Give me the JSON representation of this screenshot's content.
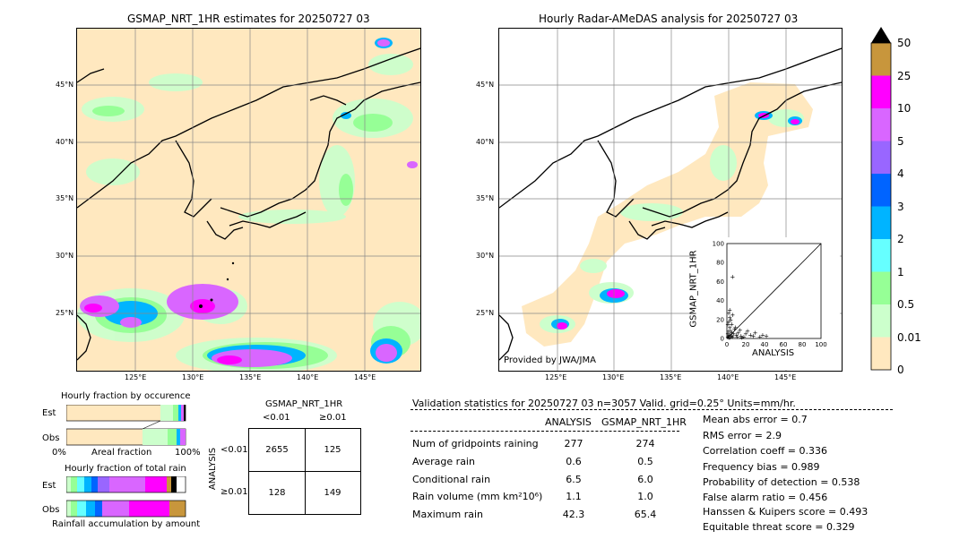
{
  "left_map": {
    "title": "GSMAP_NRT_1HR estimates for 20250727 03",
    "lat_labels": [
      "45°N",
      "40°N",
      "35°N",
      "30°N",
      "25°N"
    ],
    "lon_labels": [
      "125°E",
      "130°E",
      "135°E",
      "140°E",
      "145°E"
    ]
  },
  "right_map": {
    "title": "Hourly Radar-AMeDAS analysis for 20250727 03",
    "lat_labels": [
      "45°N",
      "40°N",
      "35°N",
      "30°N",
      "25°N"
    ],
    "lon_labels": [
      "125°E",
      "130°E",
      "135°E",
      "140°E",
      "145°E"
    ],
    "credit": "Provided by JWA/JMA"
  },
  "colorbar": {
    "labels": [
      "50",
      "25",
      "10",
      "5",
      "4",
      "3",
      "2",
      "1",
      "0.5",
      "0.01",
      "0"
    ],
    "colors": [
      "#c8963c",
      "#ff00ff",
      "#d966ff",
      "#9966ff",
      "#0064ff",
      "#00b4ff",
      "#66ffff",
      "#96ff96",
      "#ccffcc",
      "#ffe8bf"
    ]
  },
  "scatter": {
    "xlabel": "ANALYSIS",
    "ylabel": "GSMAP_NRT_1HR",
    "ticks": [
      "0",
      "20",
      "40",
      "60",
      "80",
      "100"
    ]
  },
  "fraction_occurrence": {
    "title": "Hourly fraction by occurence",
    "rows": [
      "Est",
      "Obs"
    ],
    "axis_left": "0%",
    "axis_mid": "Areal fraction",
    "axis_right": "100%"
  },
  "fraction_total": {
    "title": "Hourly fraction of total rain",
    "rows": [
      "Est",
      "Obs"
    ],
    "caption": "Rainfall accumulation by amount"
  },
  "contingency": {
    "col_title": "GSMAP_NRT_1HR",
    "col_headers": [
      "<0.01",
      "≥0.01"
    ],
    "row_title": "ANALYSIS",
    "row_headers": [
      "<0.01",
      "≥0.01"
    ],
    "cells": [
      "2655",
      "125",
      "128",
      "149"
    ]
  },
  "validation": {
    "header": "Validation statistics for 20250727 03  n=3057 Valid. grid=0.25° Units=mm/hr.",
    "col_headers": [
      "ANALYSIS",
      "GSMAP_NRT_1HR"
    ],
    "rows": [
      {
        "label": "Num of gridpoints raining",
        "analysis": "277",
        "gsmap": "274"
      },
      {
        "label": "Average rain",
        "analysis": "0.6",
        "gsmap": "0.5"
      },
      {
        "label": "Conditional rain",
        "analysis": "6.5",
        "gsmap": "6.0"
      },
      {
        "label": "Rain volume (mm km²10⁶)",
        "analysis": "1.1",
        "gsmap": "1.0"
      },
      {
        "label": "Maximum rain",
        "analysis": "42.3",
        "gsmap": "65.4"
      }
    ],
    "scores": [
      "Mean abs error =    0.7",
      "RMS error =    2.9",
      "Correlation coeff =  0.336",
      "Frequency bias =  0.989",
      "Probability of detection =  0.538",
      "False alarm ratio =  0.456",
      "Hanssen & Kuipers score =  0.493",
      "Equitable threat score =  0.329"
    ]
  },
  "chart_data": {
    "type": "scatter",
    "xlabel": "ANALYSIS",
    "ylabel": "GSMAP_NRT_1HR",
    "xlim": [
      0,
      100
    ],
    "ylim": [
      0,
      100
    ],
    "points": [
      [
        1,
        2
      ],
      [
        2,
        1
      ],
      [
        3,
        4
      ],
      [
        4,
        3
      ],
      [
        5,
        6
      ],
      [
        6,
        2
      ],
      [
        2,
        8
      ],
      [
        3,
        12
      ],
      [
        5,
        15
      ],
      [
        7,
        5
      ],
      [
        8,
        10
      ],
      [
        4,
        20
      ],
      [
        6,
        25
      ],
      [
        2,
        27
      ],
      [
        3,
        30
      ],
      [
        10,
        4
      ],
      [
        12,
        6
      ],
      [
        15,
        3
      ],
      [
        18,
        2
      ],
      [
        20,
        5
      ],
      [
        22,
        8
      ],
      [
        25,
        4
      ],
      [
        28,
        3
      ],
      [
        30,
        6
      ],
      [
        35,
        2
      ],
      [
        38,
        4
      ],
      [
        42,
        3
      ],
      [
        1,
        5
      ],
      [
        2,
        3
      ],
      [
        3,
        1
      ],
      [
        4,
        8
      ],
      [
        5,
        3
      ],
      [
        6,
        65
      ],
      [
        1,
        15
      ],
      [
        2,
        18
      ],
      [
        3,
        22
      ],
      [
        9,
        12
      ],
      [
        11,
        2
      ],
      [
        14,
        9
      ],
      [
        16,
        1
      ]
    ]
  }
}
